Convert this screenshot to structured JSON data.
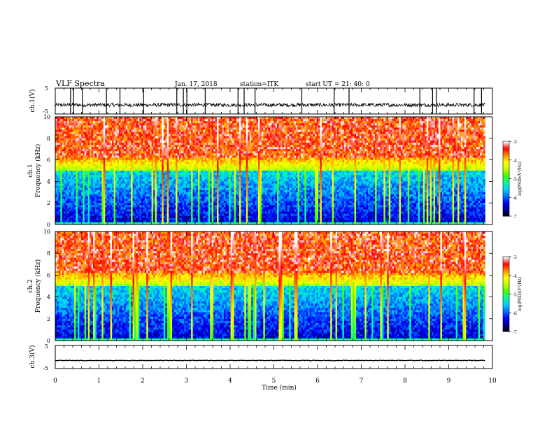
{
  "header": {
    "title": "VLF Spectra",
    "date": "Jan. 17, 2018",
    "station": "station=ITK",
    "start_ut": "start UT =  21: 40: 0"
  },
  "colors": {
    "colormap": [
      "#000000",
      "#00008b",
      "#0000ff",
      "#0070ff",
      "#00d0ff",
      "#00ffa0",
      "#40ff00",
      "#c0ff00",
      "#ffff00",
      "#ff9000",
      "#ff0000",
      "#ffffff"
    ]
  },
  "chart_data": [
    {
      "type": "line",
      "id": "ch1-waveform",
      "ylabel": "ch.1(V)",
      "ylim": [
        -5,
        5
      ],
      "y_ticks": [
        "5",
        "-5"
      ],
      "baseline": -1.5,
      "spikes_min": [
        0.35,
        0.42,
        0.62,
        1.17,
        1.48,
        2.02,
        2.78,
        2.93,
        3.01,
        3.43,
        4.18,
        4.32,
        4.57,
        5.64,
        6.38,
        6.72,
        8.34,
        8.63,
        8.72,
        9.58,
        9.75
      ],
      "xlim": [
        0,
        10
      ]
    },
    {
      "type": "heatmap",
      "id": "ch1-spectrogram",
      "ylabel_line1": "ch.1",
      "ylabel_line2": "Frequency (kHz)",
      "ylim": [
        0,
        10
      ],
      "y_ticks": [
        "0",
        "2",
        "4",
        "6",
        "8",
        "10"
      ],
      "xlim": [
        0,
        10
      ],
      "data_end_min": 9.83,
      "colorbar": {
        "label": "log(PSD)(V²/Hz)",
        "range": [
          -7,
          -3
        ],
        "ticks": [
          "-3",
          "-4",
          "-5",
          "-6",
          "-7"
        ]
      }
    },
    {
      "type": "heatmap",
      "id": "ch2-spectrogram",
      "ylabel_line1": "ch.2",
      "ylabel_line2": "Frequency (kHz)",
      "ylim": [
        0,
        10
      ],
      "y_ticks": [
        "0",
        "2",
        "4",
        "6",
        "8",
        "10"
      ],
      "xlim": [
        0,
        10
      ],
      "data_end_min": 9.83,
      "colorbar": {
        "label": "log(PSD)(V²/Hz)",
        "range": [
          -7,
          -3
        ],
        "ticks": [
          "-3",
          "-4",
          "-5",
          "-6",
          "-7"
        ]
      }
    },
    {
      "type": "line",
      "id": "ch3-waveform",
      "ylabel": "ch.3(V)",
      "ylim": [
        -5,
        5
      ],
      "y_ticks": [
        "5",
        "-5"
      ],
      "baseline": -1.5,
      "xlim": [
        0,
        10
      ],
      "xlabel": "Time (min)",
      "x_ticks": [
        "0",
        "1",
        "2",
        "3",
        "4",
        "5",
        "6",
        "7",
        "8",
        "9",
        "10"
      ]
    }
  ]
}
